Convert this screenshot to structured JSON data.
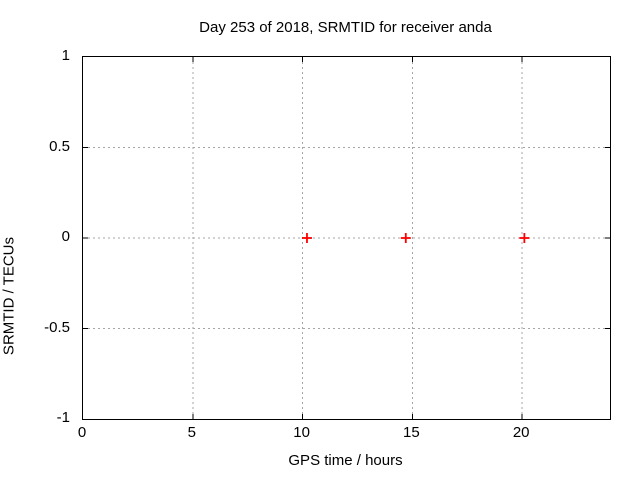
{
  "page": {
    "background": "#ffffff",
    "text_color": "#000000"
  },
  "chart_data": {
    "type": "scatter",
    "title": "Day 253 of 2018, SRMTID for receiver anda",
    "xlabel": "GPS time / hours",
    "ylabel": "SRMTID / TECUs",
    "xlim": [
      0,
      24
    ],
    "ylim": [
      -1,
      1
    ],
    "xticks": {
      "values": [
        0,
        5,
        10,
        15,
        20
      ],
      "labels": [
        "0",
        "5",
        "10",
        "15",
        "20"
      ]
    },
    "yticks": {
      "values": [
        -1,
        -0.5,
        0,
        0.5,
        1
      ],
      "labels": [
        "-1",
        "-0.5",
        "0",
        "0.5",
        "1"
      ]
    },
    "grid": {
      "visible": true,
      "style": "dashed",
      "color": "#a6a6a6"
    },
    "legend": "none",
    "border_color": "#000000",
    "tick_length": 5,
    "series": [
      {
        "name": "SRMTID",
        "marker": "plus",
        "color": "#ff0000",
        "points": [
          {
            "x": 10.2,
            "y": 0
          },
          {
            "x": 14.7,
            "y": 0
          },
          {
            "x": 20.1,
            "y": 0
          }
        ]
      }
    ]
  }
}
